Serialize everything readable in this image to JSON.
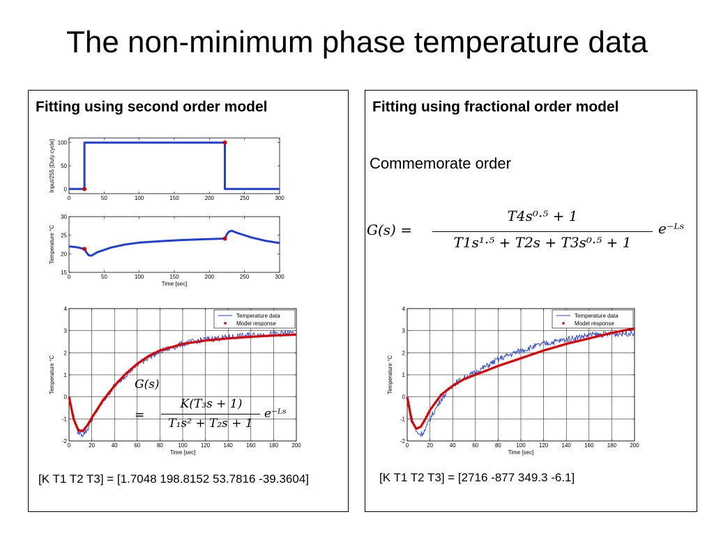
{
  "slide": {
    "title": "The non-minimum phase temperature data"
  },
  "left_panel": {
    "heading": "Fitting using second order model",
    "params": "[K T1 T2 T3] = [1.7048  198.8152   53.7816  -39.3604]",
    "formula": {
      "lhs": "G(s)",
      "eq": "=",
      "num": "K(T₃s + 1)",
      "den": "T₁s² + T₂s + 1",
      "delay": "e⁻ᴸˢ"
    }
  },
  "right_panel": {
    "heading": "Fitting using fractional order model",
    "subheading": "Commemorate order",
    "params": "[K T1 T2 T3] = [2716   -877    349.3    -6.1]",
    "formula": {
      "lhs": "G(s) =",
      "num": "T4s⁰·⁵ + 1",
      "den": "T1s¹·⁵ + T2s + T3s⁰·⁵ + 1",
      "delay": "e⁻ᴸˢ"
    }
  },
  "chart_data": [
    {
      "id": "input",
      "type": "line",
      "ylabel": "Input/255 [Duty cycle]",
      "xlabel": "",
      "xlim": [
        0,
        300
      ],
      "ylim": [
        -10,
        110
      ],
      "xticks": [
        0,
        50,
        100,
        150,
        200,
        250,
        300
      ],
      "yticks": [
        0,
        50,
        100
      ],
      "series": [
        {
          "color": "#1f3fd6",
          "x": [
            0,
            22,
            22,
            222,
            222,
            300
          ],
          "y": [
            0,
            0,
            100,
            100,
            0,
            0
          ]
        }
      ],
      "markers": [
        {
          "color": "#e00000",
          "x": [
            22,
            222
          ],
          "y": [
            0,
            100
          ]
        }
      ]
    },
    {
      "id": "temperature",
      "type": "line",
      "ylabel": "Temperature °C",
      "xlabel": "Time [sec]",
      "xlim": [
        0,
        300
      ],
      "ylim": [
        15,
        30
      ],
      "xticks": [
        0,
        50,
        100,
        150,
        200,
        250,
        300
      ],
      "yticks": [
        15,
        20,
        25,
        30
      ],
      "series": [
        {
          "color": "#1f3fd6",
          "x": [
            0,
            10,
            22,
            25,
            28,
            32,
            40,
            60,
            80,
            100,
            130,
            160,
            190,
            222,
            225,
            228,
            232,
            240,
            260,
            280,
            300
          ],
          "y": [
            22,
            21.8,
            21.3,
            20.3,
            19.6,
            19.5,
            20.4,
            21.7,
            22.5,
            23.0,
            23.4,
            23.7,
            23.9,
            24.1,
            25.3,
            26.0,
            26.2,
            25.6,
            24.4,
            23.5,
            22.9
          ]
        }
      ],
      "markers": [
        {
          "color": "#e00000",
          "x": [
            22,
            222
          ],
          "y": [
            21.3,
            24.1
          ]
        }
      ]
    },
    {
      "id": "second-order-fit",
      "type": "line",
      "ylabel": "Temperature °C",
      "xlabel": "Time [sec]",
      "xlim": [
        0,
        200
      ],
      "ylim": [
        -2,
        4
      ],
      "xticks": [
        0,
        20,
        40,
        60,
        80,
        100,
        120,
        140,
        160,
        180,
        200
      ],
      "yticks": [
        -2,
        -1,
        0,
        1,
        2,
        3,
        4
      ],
      "grid": true,
      "legend": [
        "Temperature data",
        "Model response"
      ],
      "legend_position": "top-right",
      "series": [
        {
          "name": "Temperature data",
          "color": "#1f3fd6",
          "noisy": true,
          "x": [
            0,
            4,
            8,
            12,
            16,
            20,
            30,
            40,
            50,
            60,
            70,
            80,
            100,
            120,
            140,
            160,
            180,
            200
          ],
          "y": [
            0,
            -0.9,
            -1.6,
            -1.7,
            -1.5,
            -1.0,
            -0.2,
            0.5,
            1.0,
            1.45,
            1.8,
            2.05,
            2.4,
            2.6,
            2.7,
            2.8,
            2.85,
            2.9
          ]
        },
        {
          "name": "Model response",
          "color": "#e00000",
          "x": [
            0,
            4,
            8,
            12,
            16,
            20,
            30,
            40,
            50,
            60,
            70,
            80,
            100,
            120,
            140,
            160,
            180,
            200
          ],
          "y": [
            0,
            -1.0,
            -1.5,
            -1.55,
            -1.3,
            -0.95,
            -0.15,
            0.5,
            1.05,
            1.5,
            1.85,
            2.1,
            2.4,
            2.55,
            2.65,
            2.72,
            2.78,
            2.82
          ]
        }
      ]
    },
    {
      "id": "fractional-order-fit",
      "type": "line",
      "ylabel": "Temperature °C",
      "xlabel": "Time [sec]",
      "xlim": [
        0,
        200
      ],
      "ylim": [
        -2,
        4
      ],
      "xticks": [
        0,
        20,
        40,
        60,
        80,
        100,
        120,
        140,
        160,
        180,
        200
      ],
      "yticks": [
        -2,
        -1,
        0,
        1,
        2,
        3,
        4
      ],
      "grid": true,
      "legend": [
        "Temperature data",
        "Model response"
      ],
      "legend_position": "top-right",
      "series": [
        {
          "name": "Temperature data",
          "color": "#1f3fd6",
          "noisy": true,
          "x": [
            0,
            4,
            8,
            12,
            16,
            20,
            30,
            40,
            50,
            60,
            70,
            80,
            100,
            120,
            140,
            160,
            180,
            200
          ],
          "y": [
            0,
            -0.9,
            -1.6,
            -1.7,
            -1.5,
            -1.0,
            -0.1,
            0.55,
            0.85,
            1.1,
            1.4,
            1.7,
            2.1,
            2.4,
            2.6,
            2.8,
            2.85,
            2.9
          ]
        },
        {
          "name": "Model response",
          "color": "#e00000",
          "x": [
            0,
            4,
            8,
            12,
            16,
            20,
            30,
            40,
            50,
            60,
            70,
            80,
            100,
            120,
            140,
            160,
            180,
            200
          ],
          "y": [
            0,
            -1.1,
            -1.45,
            -1.35,
            -1.0,
            -0.6,
            0.1,
            0.5,
            0.8,
            1.0,
            1.2,
            1.4,
            1.75,
            2.1,
            2.4,
            2.65,
            2.9,
            3.1
          ]
        }
      ]
    }
  ]
}
